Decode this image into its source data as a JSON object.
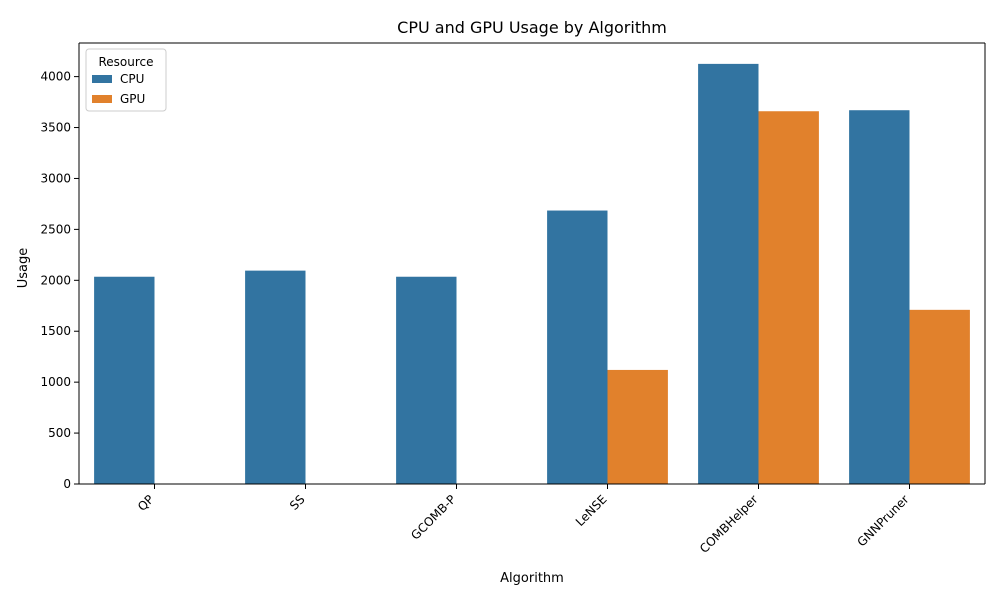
{
  "chart_data": {
    "type": "bar",
    "title": "CPU and GPU Usage by Algorithm",
    "xlabel": "Algorithm",
    "ylabel": "Usage",
    "categories": [
      "QP",
      "SS",
      "GCOMB-P",
      "LeNSE",
      "COMBHelper",
      "GNNPruner"
    ],
    "series": [
      {
        "name": "CPU",
        "color": "#3274a1",
        "values": [
          2035,
          2095,
          2035,
          2685,
          4125,
          3670
        ]
      },
      {
        "name": "GPU",
        "color": "#e1812c",
        "values": [
          0,
          0,
          0,
          1120,
          3660,
          1710
        ]
      }
    ],
    "ylim": [
      0,
      4330
    ],
    "yticks": [
      0,
      500,
      1000,
      1500,
      2000,
      2500,
      3000,
      3500,
      4000
    ],
    "legend": {
      "title": "Resource",
      "placement": "top-left"
    },
    "grid": false,
    "xtick_rotation": 45
  }
}
